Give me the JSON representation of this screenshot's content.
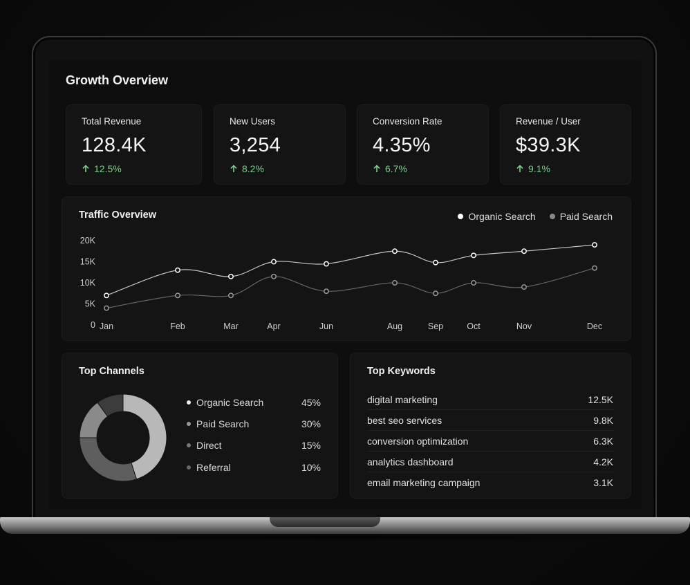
{
  "dashboard": {
    "title": "Growth Overview"
  },
  "stats": [
    {
      "label": "Total Revenue",
      "value": "128.4K",
      "delta": "12.5%"
    },
    {
      "label": "New Users",
      "value": "3,254",
      "delta": "8.2%"
    },
    {
      "label": "Conversion Rate",
      "value": "4.35%",
      "delta": "6.7%"
    },
    {
      "label": "Revenue / User",
      "value": "$39.3K",
      "delta": "9.1%"
    }
  ],
  "traffic": {
    "title": "Traffic Overview",
    "legend": [
      "Organic Search",
      "Paid Search"
    ]
  },
  "chart_data": {
    "type": "line",
    "title": "Traffic Overview",
    "x": [
      "Jan",
      "Feb",
      "Mar",
      "Apr",
      "Jun",
      "Aug",
      "Sep",
      "Oct",
      "Nov",
      "Dec"
    ],
    "y_ticks": [
      "0",
      "5K",
      "10K",
      "15K",
      "20K"
    ],
    "ylim": [
      0,
      20000
    ],
    "grid": false,
    "legend_position": "top-right",
    "series": [
      {
        "name": "Organic Search",
        "color": "#ffffff",
        "values": [
          7000,
          13000,
          11500,
          15000,
          14500,
          17500,
          14800,
          16500,
          17500,
          19000
        ]
      },
      {
        "name": "Paid Search",
        "color": "#9a9a9a",
        "values": [
          4000,
          7000,
          7000,
          11500,
          8000,
          10000,
          7500,
          10000,
          9000,
          13500
        ]
      }
    ]
  },
  "channels": {
    "title": "Top Channels",
    "items": [
      {
        "label": "Organic Search",
        "pct": "45%",
        "value": 45,
        "color": "#b8b8b8"
      },
      {
        "label": "Paid Search",
        "pct": "30%",
        "value": 30,
        "color": "#5e5e5e"
      },
      {
        "label": "Direct",
        "pct": "15%",
        "value": 15,
        "color": "#8a8a8a"
      },
      {
        "label": "Referral",
        "pct": "10%",
        "value": 10,
        "color": "#3c3c3c"
      }
    ]
  },
  "keywords": {
    "title": "Top Keywords",
    "items": [
      {
        "term": "digital marketing",
        "count": "12.5K"
      },
      {
        "term": "best seo services",
        "count": "9.8K"
      },
      {
        "term": "conversion optimization",
        "count": "6.3K"
      },
      {
        "term": "analytics dashboard",
        "count": "4.2K"
      },
      {
        "term": "email marketing campaign",
        "count": "3.1K"
      }
    ]
  }
}
